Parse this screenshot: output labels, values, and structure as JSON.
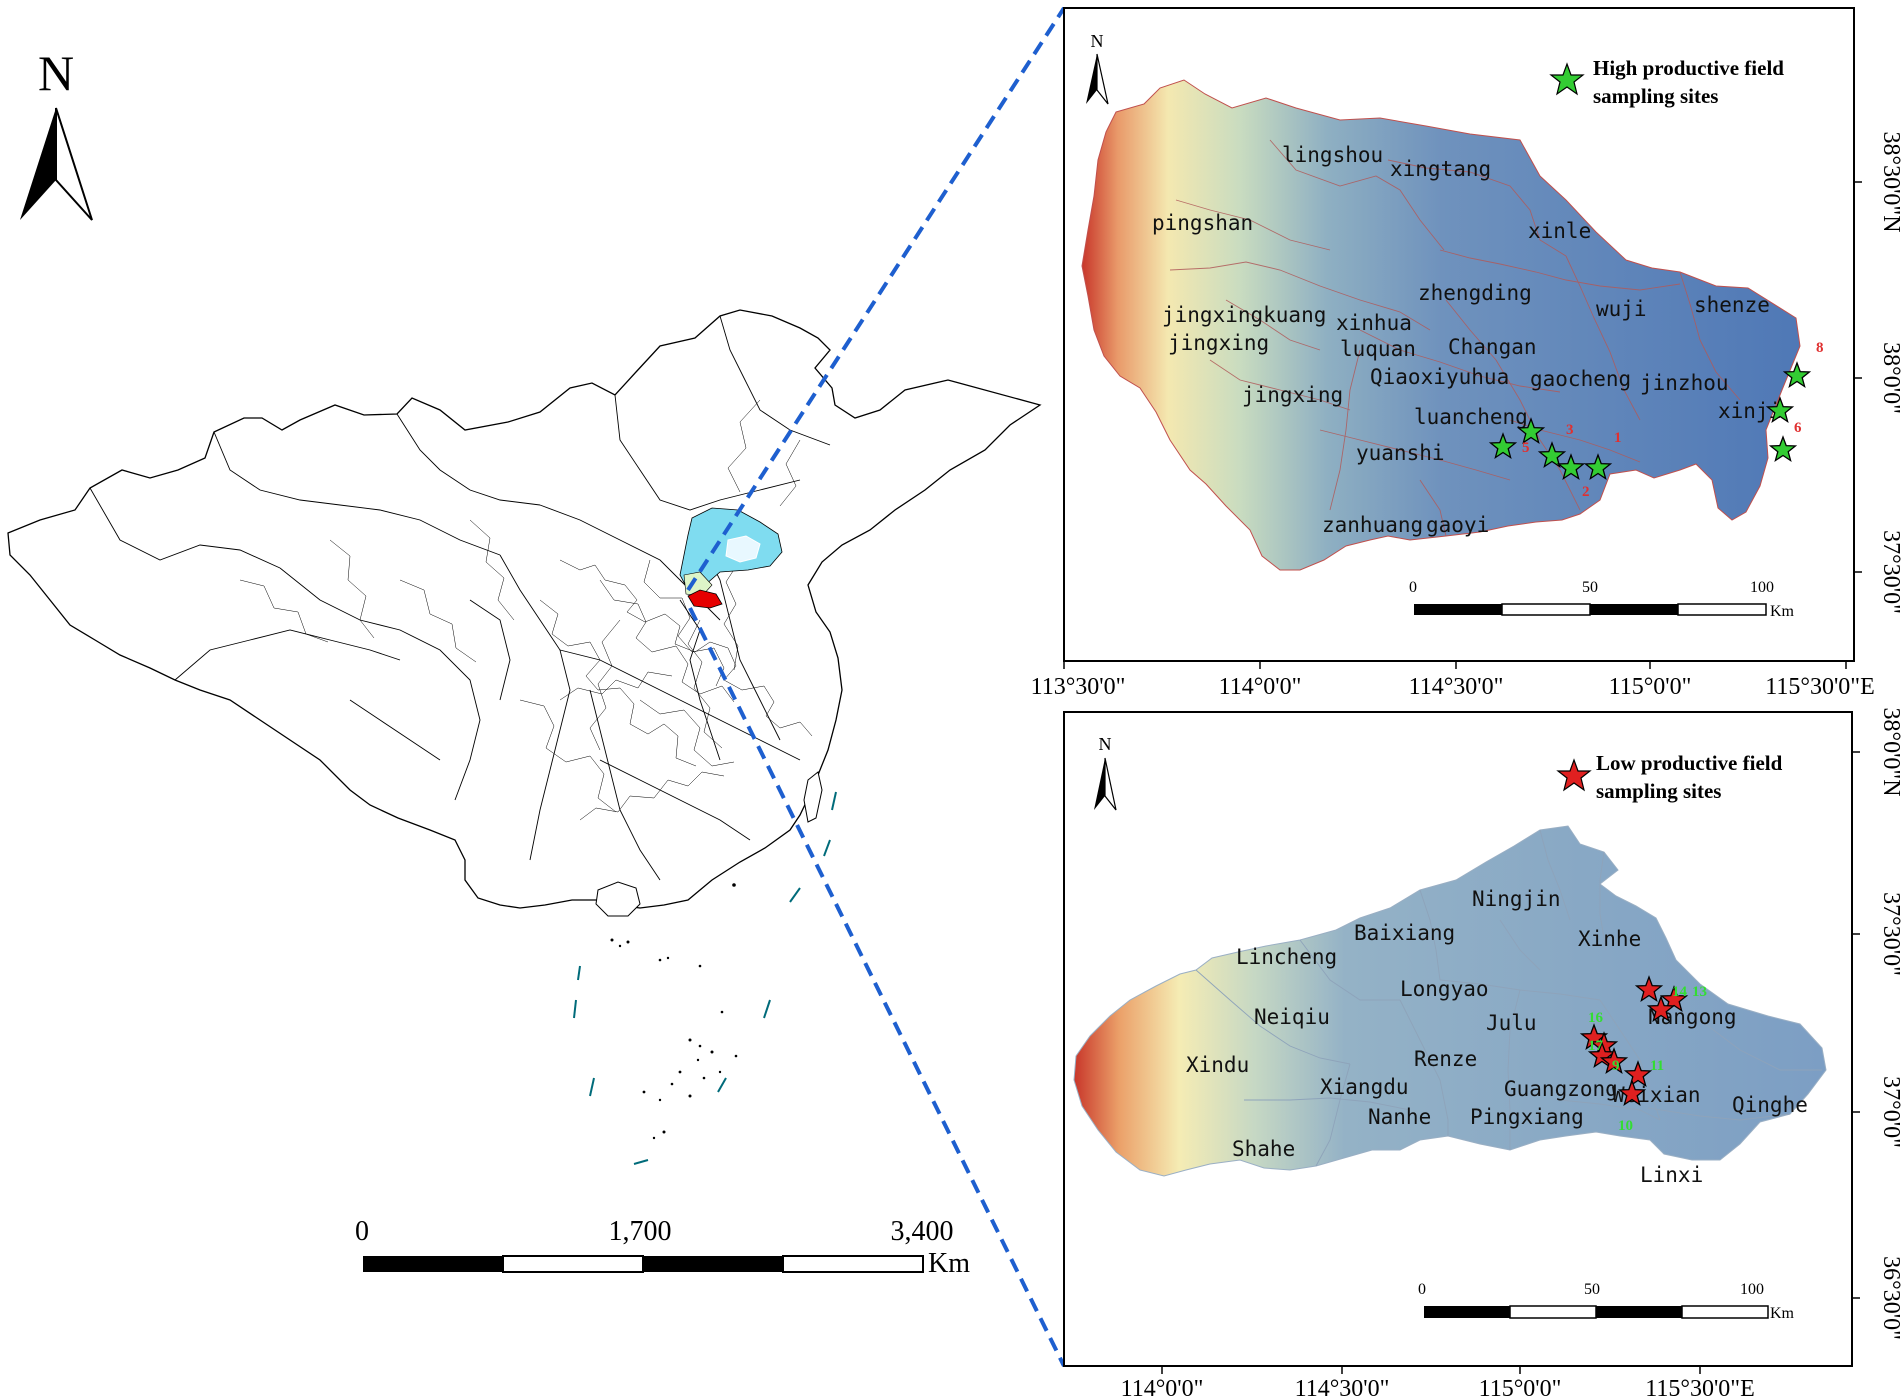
{
  "china_map": {
    "north_label": "N",
    "scale_ticks": [
      "0",
      "1,700",
      "3,400"
    ],
    "scale_unit": "Km",
    "colors": {
      "highlight_region": "#7fdcf0",
      "study_area": "#e60000",
      "pale_region": "#ddf5c8",
      "islands": "#006b7a"
    }
  },
  "inset_high": {
    "north_label": "N",
    "legend_label_line1": "High productive field",
    "legend_label_line2": "sampling sites",
    "marker_color": "#33cc33",
    "lon_ticks": [
      "113°30'0\"",
      "114°0'0\"",
      "114°30'0\"",
      "115°0'0\"",
      "115°30'0\"E"
    ],
    "lat_ticks": [
      "38°30'0\"N",
      "38°0'0\"",
      "37°30'0\""
    ],
    "scale_ticks": [
      "0",
      "50",
      "100"
    ],
    "scale_unit": "Km",
    "place_names": [
      "lingshou",
      "xingtang",
      "pingshan",
      "xinle",
      "zhengding",
      "wuji",
      "shenze",
      "jingxingkuang",
      "xinhua",
      "Changan",
      "jingxing",
      "luquan",
      "Qiaoxi",
      "yuhua",
      "gaocheng",
      "jinzhou",
      "jingxing",
      "xinji",
      "luancheng",
      "yuanshi",
      "zanhuang",
      "gaoyi"
    ],
    "site_numbers": [
      "1",
      "2",
      "3",
      "5",
      "6",
      "8"
    ]
  },
  "inset_low": {
    "north_label": "N",
    "legend_label_line1": "Low productive field",
    "legend_label_line2": "sampling sites",
    "marker_color": "#e02020",
    "lon_ticks": [
      "114°0'0\"",
      "114°30'0\"",
      "115°0'0\"",
      "115°30'0\"E"
    ],
    "lat_ticks": [
      "38°0'0\"N",
      "37°30'0\"",
      "37°0'0\"",
      "36°30'0\""
    ],
    "scale_ticks": [
      "0",
      "50",
      "100"
    ],
    "scale_unit": "Km",
    "place_names": [
      "Ningjin",
      "Baixiang",
      "Xinhe",
      "Lincheng",
      "Longyao",
      "Neiqiu",
      "Julu",
      "Nangong",
      "Renze",
      "Xindu",
      "Xiangdu",
      "Guangzong",
      "Weixian",
      "Qinghe",
      "Nanhe",
      "Pingxiang",
      "Shahe",
      "Linxi"
    ],
    "site_numbers": [
      "10",
      "11",
      "13",
      "14",
      "16",
      "17",
      "9"
    ]
  }
}
